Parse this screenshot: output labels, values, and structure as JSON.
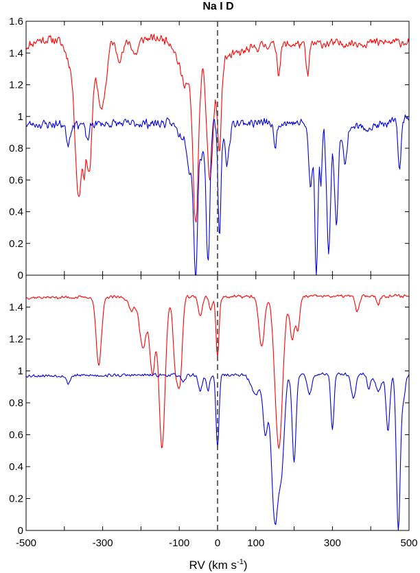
{
  "chart_data": {
    "type": "line",
    "title": "Na I D",
    "xlabel": "RV (km s",
    "xlabel_sup": "-1",
    "xlabel_end": ")",
    "xlim": [
      -500,
      500
    ],
    "x_ticks": [
      -500,
      -300,
      -100,
      0,
      100,
      300,
      500
    ],
    "x_tick_labels": [
      "-500",
      "-300",
      "-100",
      "0",
      "100",
      "300",
      "500"
    ],
    "x_minor_ticks": [
      -400,
      -200,
      200,
      400
    ],
    "vline_x": 0,
    "colors": {
      "red": "#ff0000",
      "blue": "#0000dd",
      "vline": "#555555"
    },
    "panels": [
      {
        "position": "top",
        "ylim": [
          0,
          1.6
        ],
        "y_ticks": [
          0,
          0.2,
          0.4,
          0.6,
          0.8,
          1,
          1.2,
          1.4,
          1.6
        ],
        "y_tick_labels": [
          "0",
          "0.2",
          "0.4",
          "0.6",
          "0.8",
          "1",
          "1.2",
          "1.4",
          "1.6"
        ],
        "series": [
          {
            "color": "red",
            "continuum": 1.48,
            "noise": 0.035,
            "seed": 11,
            "slope": [
              [
                -500,
                1.44
              ],
              [
                -470,
                1.48
              ],
              [
                -380,
                1.49
              ],
              [
                -100,
                1.49
              ],
              [
                0,
                1.28
              ],
              [
                20,
                1.37
              ],
              [
                120,
                1.45
              ],
              [
                500,
                1.47
              ]
            ],
            "features": [
              {
                "c": -380,
                "d": 0.16,
                "w": 15
              },
              {
                "c": -362,
                "d": 0.92,
                "w": 9
              },
              {
                "c": -335,
                "d": 0.83,
                "w": 8
              },
              {
                "c": -348,
                "d": 0.35,
                "w": 4
              },
              {
                "c": -305,
                "d": 0.45,
                "w": 9
              },
              {
                "c": -290,
                "d": 0.14,
                "w": 6
              },
              {
                "c": -255,
                "d": 0.12,
                "w": 10
              },
              {
                "c": -215,
                "d": 0.1,
                "w": 8
              },
              {
                "c": -85,
                "d": 0.25,
                "w": 18
              },
              {
                "c": -57,
                "d": 1.0,
                "w": 7
              },
              {
                "c": -20,
                "d": 0.72,
                "w": 8
              },
              {
                "c": 5,
                "d": 0.52,
                "w": 5
              },
              {
                "c": 160,
                "d": 0.18,
                "w": 4
              },
              {
                "c": 235,
                "d": 0.2,
                "w": 4
              }
            ]
          },
          {
            "color": "blue",
            "continuum": 0.96,
            "noise": 0.035,
            "seed": 23,
            "slope": [
              [
                -500,
                0.95
              ],
              [
                0,
                0.96
              ],
              [
                200,
                0.96
              ],
              [
                400,
                0.93
              ],
              [
                500,
                0.99
              ]
            ],
            "features": [
              {
                "c": -390,
                "d": 0.12,
                "w": 5
              },
              {
                "c": -340,
                "d": 0.1,
                "w": 5
              },
              {
                "c": -95,
                "d": 0.08,
                "w": 10
              },
              {
                "c": -72,
                "d": 0.3,
                "w": 7
              },
              {
                "c": -57,
                "d": 0.95,
                "w": 5
              },
              {
                "c": -42,
                "d": 0.2,
                "w": 5
              },
              {
                "c": -25,
                "d": 0.88,
                "w": 5
              },
              {
                "c": 5,
                "d": 0.7,
                "w": 4
              },
              {
                "c": 25,
                "d": 0.25,
                "w": 6
              },
              {
                "c": 150,
                "d": 0.15,
                "w": 4
              },
              {
                "c": 243,
                "d": 0.4,
                "w": 5
              },
              {
                "c": 258,
                "d": 0.95,
                "w": 4
              },
              {
                "c": 270,
                "d": 0.35,
                "w": 3
              },
              {
                "c": 290,
                "d": 0.8,
                "w": 5
              },
              {
                "c": 310,
                "d": 0.62,
                "w": 5
              },
              {
                "c": 333,
                "d": 0.25,
                "w": 5
              },
              {
                "c": 475,
                "d": 0.3,
                "w": 4
              }
            ]
          }
        ]
      },
      {
        "position": "bottom",
        "ylim": [
          0,
          1.6
        ],
        "y_ticks": [
          0,
          0.2,
          0.4,
          0.6,
          0.8,
          1,
          1.2,
          1.4
        ],
        "y_tick_labels": [
          "0",
          "0.2",
          "0.4",
          "0.6",
          "0.8",
          "1",
          "1.2",
          "1.4"
        ],
        "series": [
          {
            "color": "red",
            "continuum": 1.47,
            "noise": 0.012,
            "seed": 37,
            "slope": [
              [
                -500,
                1.46
              ],
              [
                500,
                1.47
              ]
            ],
            "features": [
              {
                "c": -310,
                "d": 0.42,
                "w": 7
              },
              {
                "c": -225,
                "d": 0.08,
                "w": 8
              },
              {
                "c": -195,
                "d": 0.32,
                "w": 9
              },
              {
                "c": -170,
                "d": 0.48,
                "w": 7
              },
              {
                "c": -145,
                "d": 0.95,
                "w": 8
              },
              {
                "c": -110,
                "d": 0.42,
                "w": 6
              },
              {
                "c": -98,
                "d": 0.5,
                "w": 6
              },
              {
                "c": -45,
                "d": 0.12,
                "w": 5
              },
              {
                "c": -18,
                "d": 0.08,
                "w": 4
              },
              {
                "c": 0,
                "d": 0.38,
                "w": 4
              },
              {
                "c": 115,
                "d": 0.32,
                "w": 7
              },
              {
                "c": 160,
                "d": 0.95,
                "w": 10
              },
              {
                "c": 195,
                "d": 0.27,
                "w": 6
              },
              {
                "c": 210,
                "d": 0.2,
                "w": 5
              },
              {
                "c": 365,
                "d": 0.1,
                "w": 5
              },
              {
                "c": 420,
                "d": 0.05,
                "w": 4
              }
            ]
          },
          {
            "color": "blue",
            "continuum": 0.97,
            "noise": 0.012,
            "seed": 53,
            "slope": [
              [
                -500,
                0.97
              ],
              [
                500,
                0.98
              ]
            ],
            "features": [
              {
                "c": -390,
                "d": 0.05,
                "w": 5
              },
              {
                "c": -90,
                "d": 0.05,
                "w": 5
              },
              {
                "c": -45,
                "d": 0.1,
                "w": 5
              },
              {
                "c": -25,
                "d": 0.1,
                "w": 4
              },
              {
                "c": 0,
                "d": 0.45,
                "w": 4
              },
              {
                "c": 100,
                "d": 0.12,
                "w": 12
              },
              {
                "c": 125,
                "d": 0.35,
                "w": 6
              },
              {
                "c": 150,
                "d": 0.92,
                "w": 9
              },
              {
                "c": 168,
                "d": 0.5,
                "w": 7
              },
              {
                "c": 200,
                "d": 0.55,
                "w": 5
              },
              {
                "c": 240,
                "d": 0.12,
                "w": 6
              },
              {
                "c": 300,
                "d": 0.35,
                "w": 4
              },
              {
                "c": 355,
                "d": 0.15,
                "w": 6
              },
              {
                "c": 395,
                "d": 0.1,
                "w": 4
              },
              {
                "c": 420,
                "d": 0.1,
                "w": 8
              },
              {
                "c": 445,
                "d": 0.35,
                "w": 5
              },
              {
                "c": 472,
                "d": 0.97,
                "w": 5
              },
              {
                "c": 485,
                "d": 0.15,
                "w": 5
              }
            ]
          }
        ]
      }
    ]
  }
}
